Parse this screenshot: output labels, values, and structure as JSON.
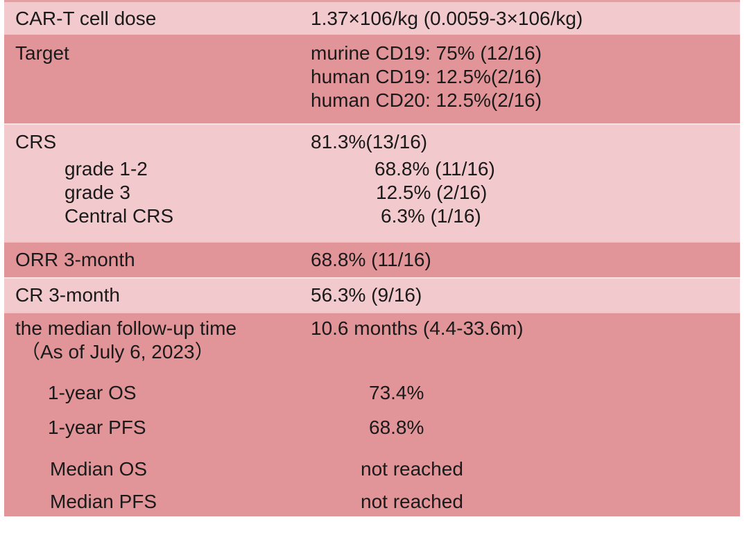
{
  "table": {
    "colors": {
      "row_light": "#f2c9cc",
      "row_dark": "#e29599",
      "text": "#1a1a1a"
    },
    "rows": {
      "dose": {
        "label": "CAR-T cell dose",
        "value": "1.37×106/kg (0.0059-3×106/kg)"
      },
      "target": {
        "label": "Target",
        "values": [
          "murine CD19: 75% (12/16)",
          "human CD19: 12.5%(2/16)",
          "human CD20: 12.5%(2/16)"
        ]
      },
      "crs": {
        "label": "CRS",
        "value": "81.3%(13/16)",
        "sub": [
          {
            "label": "grade 1-2",
            "value": "68.8% (11/16)"
          },
          {
            "label": "grade 3",
            "value": "12.5% (2/16)"
          },
          {
            "label": "Central CRS",
            "value": "6.3% (1/16)"
          }
        ]
      },
      "orr": {
        "label": "ORR 3-month",
        "value": "68.8% (11/16)"
      },
      "cr": {
        "label": "CR 3-month",
        "value": "56.3% (9/16)"
      },
      "followup": {
        "label_line1": "the median follow-up time",
        "label_line2": "（As of July 6, 2023）",
        "value": "10.6 months (4.4-33.6m)",
        "sub": [
          {
            "label": "1-year OS",
            "value": "73.4%"
          },
          {
            "label": "1-year PFS",
            "value": "68.8%"
          },
          {
            "label": "Median OS",
            "value": "not reached"
          },
          {
            "label": "Median PFS",
            "value": "not reached"
          }
        ]
      }
    }
  }
}
